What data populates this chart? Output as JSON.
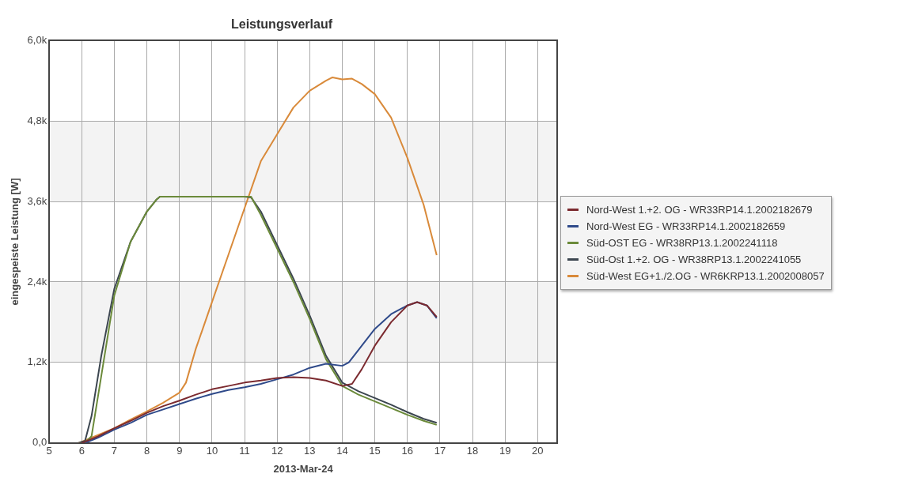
{
  "chart_data": {
    "type": "line",
    "title": "Leistungsverlauf",
    "xlabel": "2013-Mar-24",
    "ylabel": "eingespeiste Leistung [W]",
    "xlim": [
      5,
      20.6
    ],
    "xticks": [
      5,
      6,
      7,
      8,
      9,
      10,
      11,
      12,
      13,
      14,
      15,
      16,
      17,
      18,
      19,
      20
    ],
    "ylim": [
      0,
      6000
    ],
    "yticks": [
      {
        "value": 0,
        "label": "0,0"
      },
      {
        "value": 1200,
        "label": "1,2k"
      },
      {
        "value": 2400,
        "label": "2,4k"
      },
      {
        "value": 3600,
        "label": "3,6k"
      },
      {
        "value": 4800,
        "label": "4,8k"
      },
      {
        "value": 6000,
        "label": "6,0k"
      }
    ],
    "grid": true,
    "legend": "right",
    "marker": "none",
    "line_style": "solid",
    "bands": [
      {
        "axis": "y",
        "from": 1200,
        "to": 2400,
        "color": "#f3f3f3"
      },
      {
        "axis": "y",
        "from": 3600,
        "to": 4800,
        "color": "#f3f3f3"
      }
    ],
    "series": [
      {
        "name": "Nord-West 1.+2. OG - WR33RP14.1.2002182679",
        "color": "#7b2a2f",
        "x": [
          6,
          6.5,
          7,
          7.5,
          8,
          8.5,
          9,
          9.5,
          10,
          10.5,
          11,
          11.5,
          12,
          12.5,
          13,
          13.5,
          14,
          14.3,
          14.6,
          15,
          15.5,
          16,
          16.3,
          16.6,
          16.9
        ],
        "values": [
          0,
          100,
          220,
          330,
          450,
          550,
          630,
          720,
          800,
          850,
          900,
          930,
          970,
          980,
          970,
          930,
          850,
          880,
          1100,
          1450,
          1800,
          2050,
          2100,
          2050,
          1880
        ]
      },
      {
        "name": "Nord-West EG - WR33RP14.1.2002182659",
        "color": "#2f4a8a",
        "x": [
          6.1,
          6.5,
          7,
          7.5,
          8,
          8.5,
          9,
          9.5,
          10,
          10.5,
          11,
          11.5,
          12,
          12.5,
          13,
          13.5,
          14,
          14.2,
          14.6,
          15,
          15.5,
          16,
          16.3,
          16.6,
          16.9
        ],
        "values": [
          0,
          80,
          200,
          300,
          420,
          500,
          580,
          660,
          730,
          790,
          830,
          880,
          950,
          1020,
          1120,
          1180,
          1150,
          1200,
          1450,
          1700,
          1920,
          2050,
          2100,
          2050,
          1860
        ]
      },
      {
        "name": "Süd-OST EG - WR38RP13.1.2002241118",
        "color": "#6b8a3a",
        "x": [
          6.1,
          6.3,
          6.6,
          7,
          7.5,
          8,
          8.3,
          8.4,
          11,
          11.2,
          11.5,
          12,
          12.5,
          13,
          13.5,
          14,
          14.5,
          15,
          15.5,
          16,
          16.5,
          16.9
        ],
        "values": [
          0,
          100,
          1000,
          2200,
          3000,
          3450,
          3630,
          3670,
          3670,
          3670,
          3400,
          2900,
          2400,
          1850,
          1250,
          850,
          720,
          620,
          520,
          420,
          330,
          270
        ]
      },
      {
        "name": "Süd-Ost 1.+2. OG - WR38RP13.1.2002241055",
        "color": "#3c4650",
        "x": [
          5.9,
          6.1,
          6.3,
          6.6,
          7,
          7.5,
          8,
          8.3,
          8.4,
          11,
          11.2,
          11.5,
          12,
          12.5,
          13,
          13.5,
          14,
          14.5,
          15,
          15.5,
          16,
          16.5,
          16.9
        ],
        "values": [
          0,
          30,
          400,
          1300,
          2300,
          3000,
          3450,
          3630,
          3670,
          3670,
          3660,
          3450,
          2950,
          2450,
          1900,
          1300,
          900,
          770,
          670,
          570,
          460,
          360,
          300
        ]
      },
      {
        "name": "Süd-West EG+1./2.OG - WR6KRP13.1.2002008057",
        "color": "#d98a3a",
        "x": [
          5.9,
          6.5,
          7,
          7.5,
          8,
          8.5,
          9,
          9.2,
          9.5,
          10,
          10.5,
          11,
          11.5,
          12,
          12.5,
          13,
          13.5,
          13.7,
          14,
          14.3,
          14.6,
          15,
          15.5,
          16,
          16.5,
          16.9
        ],
        "values": [
          0,
          120,
          220,
          350,
          470,
          600,
          750,
          900,
          1400,
          2100,
          2800,
          3500,
          4200,
          4600,
          5000,
          5250,
          5400,
          5450,
          5420,
          5430,
          5350,
          5200,
          4850,
          4250,
          3550,
          2800
        ]
      }
    ]
  }
}
